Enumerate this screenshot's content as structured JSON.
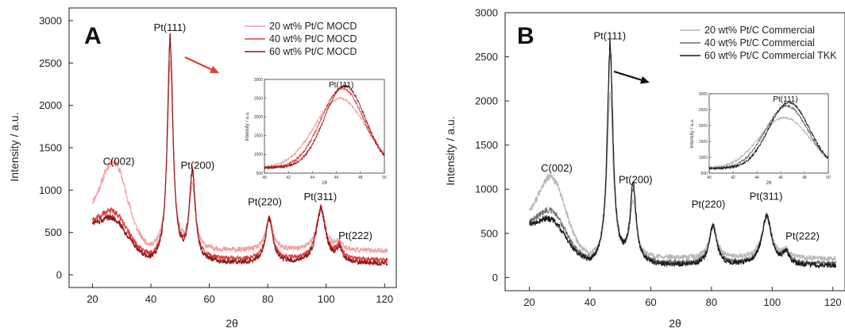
{
  "chart_data": [
    {
      "type": "line",
      "panel_label": "A",
      "xlabel": "2θ",
      "ylabel": "Intensity / a.u.",
      "xlim": [
        12,
        124
      ],
      "ylim": [
        -150,
        3150
      ],
      "xticks": [
        20,
        40,
        60,
        80,
        100,
        120
      ],
      "yticks": [
        0,
        500,
        1000,
        1500,
        2000,
        2500,
        3000
      ],
      "legend_position": "top-right",
      "series": [
        {
          "name": "20 wt% Pt/C MOCD",
          "color": "#f2a0a0",
          "base": 280,
          "c002": 780,
          "p111": 2180,
          "p200": 750,
          "p220": 390,
          "p311": 480,
          "p222": 90
        },
        {
          "name": "40 wt% Pt/C MOCD",
          "color": "#e03c3c",
          "base": 170,
          "c002": 300,
          "p111": 2550,
          "p200": 1020,
          "p220": 480,
          "p311": 610,
          "p222": 150
        },
        {
          "name": "60 wt% Pt/C MOCD",
          "color": "#8b1a1a",
          "base": 130,
          "c002": 260,
          "p111": 2650,
          "p200": 1030,
          "p220": 520,
          "p311": 640,
          "p222": 150
        }
      ],
      "annotations": [
        {
          "text": "C(002)",
          "x": 29,
          "y": 1300
        },
        {
          "text": "Pt(111)",
          "x": 46.5,
          "y": 2880
        },
        {
          "text": "Pt(200)",
          "x": 56,
          "y": 1250
        },
        {
          "text": "Pt(220)",
          "x": 79,
          "y": 820
        },
        {
          "text": "Pt(311)",
          "x": 98,
          "y": 880
        },
        {
          "text": "Pt(222)",
          "x": 110,
          "y": 420
        }
      ],
      "arrow_color": "#e0403a",
      "inset": {
        "xlim": [
          40,
          50
        ],
        "ylim": [
          500,
          3000
        ],
        "xticks": [
          40,
          42,
          44,
          46,
          48,
          50
        ],
        "yticks": [
          500,
          1000,
          1500,
          2000,
          2500,
          3000
        ],
        "xlabel": "2θ",
        "ylabel": "Intensity / a.u.",
        "annotation": "Pt(111)"
      }
    },
    {
      "type": "line",
      "panel_label": "B",
      "xlabel": "2θ",
      "ylabel": "Intensity / a.u.",
      "xlim": [
        12,
        124
      ],
      "ylim": [
        -150,
        3000
      ],
      "xticks": [
        20,
        40,
        60,
        80,
        100,
        120
      ],
      "yticks": [
        0,
        500,
        1000,
        1500,
        2000,
        2500,
        3000
      ],
      "legend_position": "top-right",
      "series": [
        {
          "name": "20 wt% Pt/C Commercial",
          "color": "#b8b8b8",
          "base": 210,
          "c002": 650,
          "p111": 1850,
          "p200": 620,
          "p220": 370,
          "p311": 470,
          "p222": 80
        },
        {
          "name": "40 wt% Pt/C Commercial",
          "color": "#6f6f6f",
          "base": 150,
          "c002": 330,
          "p111": 2350,
          "p200": 820,
          "p220": 430,
          "p311": 540,
          "p222": 120
        },
        {
          "name": "60 wt% Pt/C Commercial TKK",
          "color": "#1a1a1a",
          "base": 130,
          "c002": 250,
          "p111": 2500,
          "p200": 880,
          "p220": 450,
          "p311": 560,
          "p222": 130
        }
      ],
      "annotations": [
        {
          "text": "C(002)",
          "x": 29,
          "y": 1200
        },
        {
          "text": "Pt(111)",
          "x": 46.5,
          "y": 2700
        },
        {
          "text": "Pt(200)",
          "x": 55,
          "y": 1070
        },
        {
          "text": "Pt(220)",
          "x": 79,
          "y": 790
        },
        {
          "text": "Pt(311)",
          "x": 98,
          "y": 880
        },
        {
          "text": "Pt(222)",
          "x": 110,
          "y": 430
        }
      ],
      "arrow_color": "#111111",
      "inset": {
        "xlim": [
          40,
          50
        ],
        "ylim": [
          500,
          3000
        ],
        "xticks": [
          40,
          42,
          44,
          46,
          48,
          50
        ],
        "yticks": [
          500,
          1000,
          1500,
          2000,
          2500,
          3000
        ],
        "xlabel": "2θ",
        "ylabel": "Intensity / a.u.",
        "annotation": "Pt(111)"
      }
    }
  ]
}
